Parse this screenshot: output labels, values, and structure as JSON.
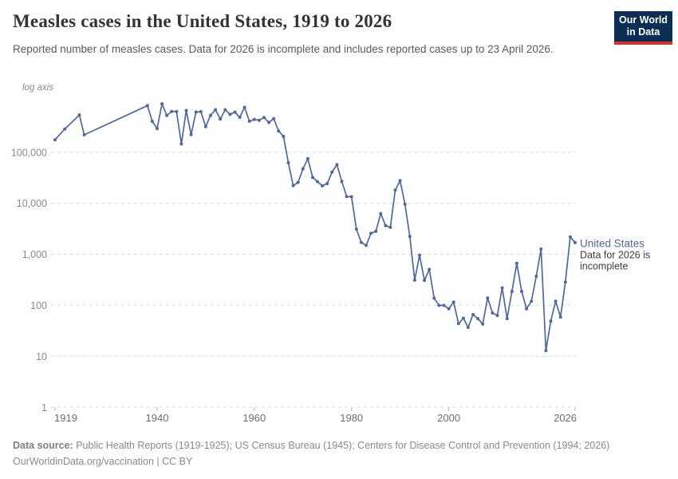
{
  "header": {
    "logo": {
      "line1": "Our World",
      "line2": "in Data",
      "bg_color": "#0d2e54",
      "bar_color": "#d4342e"
    }
  },
  "chart_data": {
    "type": "line",
    "title": "Measles cases in the United States, 1919 to 2026",
    "subtitle": "Reported number of measles cases. Data for 2026 is incomplete and includes reported cases up to 23 April 2026.",
    "axis_note": "log axis",
    "y_scale": "log",
    "grid": true,
    "x_range": [
      1919,
      2026
    ],
    "ylim": [
      1,
      1000000
    ],
    "x_ticks": [
      1919,
      1940,
      1960,
      1980,
      2000,
      2026
    ],
    "y_ticks": [
      1,
      10,
      100,
      1000,
      10000,
      100000
    ],
    "grid_color": "#dcdcdc",
    "tick_label_color_x": "#6d6d6d",
    "tick_label_color_y": "#8a8a8a",
    "series": [
      {
        "name": "United States",
        "color": "#4c6a9c",
        "points": [
          [
            1919,
            176000
          ],
          [
            1921,
            286000
          ],
          [
            1924,
            540000
          ],
          [
            1925,
            220000
          ],
          [
            1938,
            822811
          ],
          [
            1939,
            404988
          ],
          [
            1940,
            291162
          ],
          [
            1941,
            894134
          ],
          [
            1942,
            527958
          ],
          [
            1943,
            633627
          ],
          [
            1944,
            630291
          ],
          [
            1945,
            146013
          ],
          [
            1946,
            659843
          ],
          [
            1947,
            222375
          ],
          [
            1948,
            615104
          ],
          [
            1949,
            625281
          ],
          [
            1950,
            319124
          ],
          [
            1951,
            530118
          ],
          [
            1952,
            683077
          ],
          [
            1953,
            449146
          ],
          [
            1954,
            682720
          ],
          [
            1955,
            555156
          ],
          [
            1956,
            611936
          ],
          [
            1957,
            486799
          ],
          [
            1958,
            763094
          ],
          [
            1959,
            406162
          ],
          [
            1960,
            441703
          ],
          [
            1961,
            423919
          ],
          [
            1962,
            481530
          ],
          [
            1963,
            385156
          ],
          [
            1964,
            458083
          ],
          [
            1965,
            261904
          ],
          [
            1966,
            204136
          ],
          [
            1967,
            62705
          ],
          [
            1968,
            22231
          ],
          [
            1969,
            25826
          ],
          [
            1970,
            47351
          ],
          [
            1971,
            75290
          ],
          [
            1972,
            32275
          ],
          [
            1973,
            26690
          ],
          [
            1974,
            22094
          ],
          [
            1975,
            24374
          ],
          [
            1976,
            41126
          ],
          [
            1977,
            57345
          ],
          [
            1978,
            26871
          ],
          [
            1979,
            13597
          ],
          [
            1980,
            13506
          ],
          [
            1981,
            3124
          ],
          [
            1982,
            1714
          ],
          [
            1983,
            1497
          ],
          [
            1984,
            2587
          ],
          [
            1985,
            2822
          ],
          [
            1986,
            6282
          ],
          [
            1987,
            3655
          ],
          [
            1988,
            3396
          ],
          [
            1989,
            18193
          ],
          [
            1990,
            27786
          ],
          [
            1991,
            9643
          ],
          [
            1992,
            2237
          ],
          [
            1993,
            312
          ],
          [
            1994,
            963
          ],
          [
            1995,
            309
          ],
          [
            1996,
            508
          ],
          [
            1997,
            138
          ],
          [
            1998,
            100
          ],
          [
            1999,
            100
          ],
          [
            2000,
            86
          ],
          [
            2001,
            116
          ],
          [
            2002,
            44
          ],
          [
            2003,
            56
          ],
          [
            2004,
            37
          ],
          [
            2005,
            66
          ],
          [
            2006,
            55
          ],
          [
            2007,
            43
          ],
          [
            2008,
            140
          ],
          [
            2009,
            71
          ],
          [
            2010,
            63
          ],
          [
            2011,
            220
          ],
          [
            2012,
            55
          ],
          [
            2013,
            187
          ],
          [
            2014,
            667
          ],
          [
            2015,
            188
          ],
          [
            2016,
            86
          ],
          [
            2017,
            120
          ],
          [
            2018,
            372
          ],
          [
            2019,
            1274
          ],
          [
            2020,
            13
          ],
          [
            2021,
            49
          ],
          [
            2022,
            121
          ],
          [
            2023,
            59
          ],
          [
            2024,
            285
          ],
          [
            2025,
            2200
          ],
          [
            2026,
            1700
          ]
        ]
      }
    ],
    "annotations": {
      "entity_label": "United States",
      "note_lines": [
        "Data for 2026 is",
        "incomplete"
      ],
      "note_color": "#3d3d3d"
    },
    "legend_position": "right-of-line-end"
  },
  "footer": {
    "source_label": "Data source:",
    "source_text": " Public Health Reports (1919-1925); US Census Bureau (1945); Centers for Disease Control and Prevention (1994; 2026)",
    "license_line": "OurWorldinData.org/vaccination | CC BY"
  }
}
